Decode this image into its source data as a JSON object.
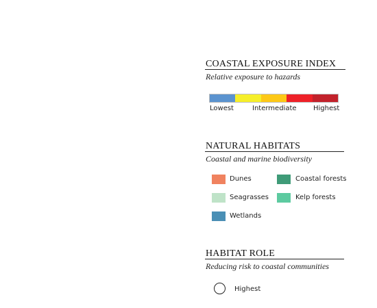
{
  "exposure": {
    "title": "COASTAL EXPOSURE INDEX",
    "subtitle": "Relative exposure to hazards",
    "scale_colors": [
      "#5b93cf",
      "#f6ef2a",
      "#fdc817",
      "#ee2128",
      "#c2222b"
    ],
    "labels": {
      "low": "Lowest",
      "mid": "Intermediate",
      "high": "Highest"
    }
  },
  "habitats": {
    "title": "NATURAL HABITATS",
    "subtitle": "Coastal and marine biodiversity",
    "items": [
      {
        "label": "Dunes",
        "color": "#f0825f"
      },
      {
        "label": "Coastal forests",
        "color": "#3f9b78"
      },
      {
        "label": "Seagrasses",
        "color": "#bfe3c8"
      },
      {
        "label": "Kelp forests",
        "color": "#5dcaa0"
      },
      {
        "label": "Wetlands",
        "color": "#4a8fb5"
      }
    ]
  },
  "role": {
    "title": "HABITAT ROLE",
    "subtitle": "Reducing risk to coastal communities",
    "items": [
      {
        "label": "Highest",
        "icon": "circle-outline-icon"
      }
    ]
  }
}
